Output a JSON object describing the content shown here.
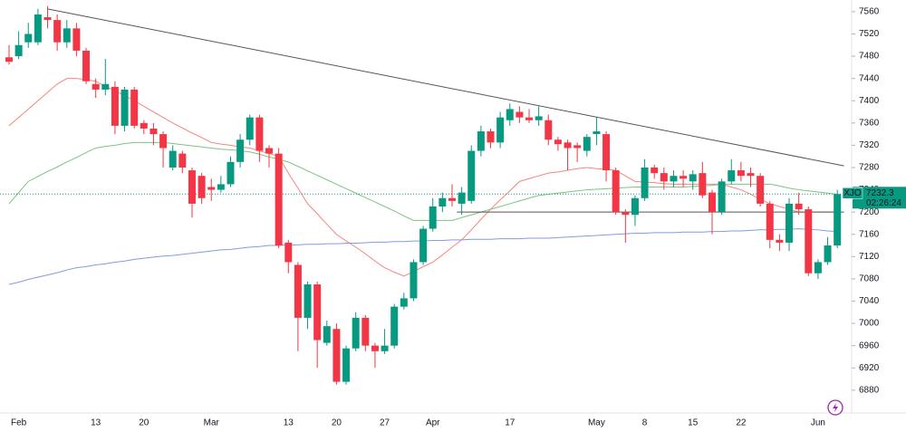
{
  "chart_data": {
    "type": "candlestick",
    "symbol": "XJO",
    "last_price": 7232.3,
    "countdown": "02:26:24",
    "categories": [
      null,
      "Feb",
      null,
      null,
      null,
      null,
      null,
      null,
      null,
      "13",
      null,
      null,
      null,
      null,
      "20",
      null,
      null,
      null,
      null,
      null,
      null,
      "Mar",
      null,
      null,
      null,
      null,
      null,
      null,
      null,
      "13",
      null,
      null,
      null,
      null,
      "20",
      null,
      null,
      null,
      null,
      "27",
      null,
      null,
      null,
      null,
      "Apr",
      null,
      null,
      null,
      null,
      null,
      null,
      null,
      "17",
      null,
      null,
      null,
      null,
      null,
      null,
      null,
      null,
      "May",
      null,
      null,
      null,
      null,
      "8",
      null,
      null,
      null,
      null,
      "15",
      null,
      null,
      null,
      null,
      "22",
      null,
      null,
      null,
      null,
      null,
      null,
      null,
      "Jun",
      null,
      null
    ],
    "open": [
      7478,
      7480,
      7505,
      7505,
      7550,
      7545,
      7505,
      7530,
      7490,
      7430,
      7420,
      7425,
      7355,
      7420,
      7360,
      7350,
      7340,
      7280,
      7305,
      7275,
      7265,
      7245,
      7240,
      7250,
      7290,
      7330,
      7370,
      7315,
      7305,
      7145,
      7105,
      7010,
      7070,
      6965,
      6990,
      6895,
      6955,
      7010,
      6960,
      6950,
      6960,
      7030,
      7045,
      7110,
      7170,
      7210,
      7225,
      7215,
      7220,
      7310,
      7345,
      7325,
      7365,
      7380,
      7370,
      7365,
      7365,
      7330,
      7325,
      7320,
      7310,
      7340,
      7340,
      7275,
      7200,
      7195,
      7225,
      7280,
      7270,
      7255,
      7265,
      7255,
      7270,
      7235,
      7200,
      7255,
      7275,
      7270,
      7265,
      7215,
      7150,
      7145,
      7215,
      7205,
      7090,
      7110,
      7140
    ],
    "high": [
      7500,
      7525,
      7540,
      7565,
      7570,
      7555,
      7545,
      7540,
      7495,
      7440,
      7475,
      7435,
      7425,
      7425,
      7365,
      7360,
      7345,
      7320,
      7310,
      7280,
      7270,
      7260,
      7265,
      7300,
      7340,
      7375,
      7375,
      7320,
      7315,
      7150,
      7110,
      7075,
      7075,
      7005,
      7000,
      6960,
      7020,
      7015,
      6965,
      6990,
      7035,
      7055,
      7115,
      7175,
      7225,
      7235,
      7250,
      7245,
      7320,
      7355,
      7350,
      7380,
      7395,
      7390,
      7385,
      7390,
      7375,
      7335,
      7330,
      7325,
      7340,
      7370,
      7345,
      7280,
      7205,
      7230,
      7295,
      7285,
      7280,
      7275,
      7275,
      7275,
      7290,
      7240,
      7260,
      7295,
      7290,
      7280,
      7270,
      7220,
      7160,
      7225,
      7235,
      7210,
      7115,
      7155,
      7240
    ],
    "low": [
      7465,
      7475,
      7495,
      7500,
      7530,
      7490,
      7495,
      7480,
      7430,
      7405,
      7410,
      7340,
      7345,
      7350,
      7340,
      7320,
      7280,
      7275,
      7270,
      7190,
      7215,
      7220,
      7235,
      7245,
      7280,
      7320,
      7290,
      7280,
      7135,
      7090,
      6950,
      6990,
      6920,
      6960,
      6890,
      6890,
      6950,
      6950,
      6920,
      6945,
      6955,
      7025,
      7040,
      7105,
      7165,
      7200,
      7210,
      7195,
      7215,
      7300,
      7315,
      7315,
      7355,
      7360,
      7360,
      7355,
      7320,
      7310,
      7275,
      7290,
      7300,
      7320,
      7255,
      7195,
      7145,
      7175,
      7220,
      7260,
      7240,
      7245,
      7245,
      7240,
      7225,
      7160,
      7195,
      7250,
      7255,
      7245,
      7210,
      7135,
      7130,
      7130,
      7195,
      7085,
      7080,
      7105,
      7135
    ],
    "close": [
      7470,
      7500,
      7520,
      7555,
      7545,
      7505,
      7530,
      7490,
      7435,
      7420,
      7430,
      7355,
      7420,
      7355,
      7350,
      7340,
      7315,
      7310,
      7280,
      7215,
      7225,
      7240,
      7250,
      7290,
      7330,
      7370,
      7310,
      7305,
      7140,
      7110,
      7010,
      7070,
      6970,
      6995,
      6895,
      6955,
      7010,
      6960,
      6950,
      6960,
      7030,
      7045,
      7110,
      7170,
      7210,
      7225,
      7220,
      7235,
      7310,
      7345,
      7325,
      7370,
      7385,
      7370,
      7365,
      7372,
      7330,
      7322,
      7315,
      7315,
      7335,
      7345,
      7275,
      7200,
      7195,
      7225,
      7280,
      7270,
      7255,
      7265,
      7260,
      7268,
      7230,
      7200,
      7255,
      7275,
      7265,
      7265,
      7215,
      7150,
      7145,
      7215,
      7205,
      7090,
      7110,
      7140,
      7232.3
    ],
    "up_color": "#089981",
    "down_color": "#f23645",
    "moving_averages": [
      {
        "color": "#f5857d",
        "values": [
          7355,
          7370,
          7385,
          7400,
          7415,
          7430,
          7440,
          7440,
          7438,
          7435,
          7426,
          7418,
          7409,
          7400,
          7390,
          7380,
          7370,
          7360,
          7351,
          7342,
          7334,
          7325,
          7322,
          7320,
          7317,
          7315,
          7310,
          7305,
          7300,
          7270,
          7243,
          7215,
          7197,
          7178,
          7160,
          7148,
          7137,
          7125,
          7112,
          7100,
          7092,
          7085,
          7093,
          7102,
          7110,
          7123,
          7137,
          7150,
          7168,
          7187,
          7205,
          7222,
          7238,
          7255,
          7260,
          7265,
          7270,
          7272,
          7275,
          7278,
          7280,
          7278,
          7277,
          7275,
          7265,
          7255,
          7254,
          7253,
          7251,
          7250,
          7250,
          7250,
          7250,
          7250,
          7250,
          7245,
          7240,
          7232,
          7223,
          7215,
          7210,
          7205,
          7200,
          7200,
          7200,
          7200,
          7200
        ]
      },
      {
        "color": "#7cc47f",
        "values": [
          7215,
          7235,
          7255,
          7264,
          7273,
          7281,
          7290,
          7298,
          7307,
          7315,
          7318,
          7320,
          7323,
          7325,
          7325,
          7325,
          7325,
          7323,
          7321,
          7319,
          7317,
          7315,
          7313,
          7312,
          7310,
          7308,
          7304,
          7299,
          7295,
          7290,
          7282,
          7274,
          7266,
          7258,
          7250,
          7242,
          7234,
          7226,
          7218,
          7210,
          7202,
          7193,
          7185,
          7185,
          7185,
          7185,
          7185,
          7190,
          7195,
          7200,
          7205,
          7210,
          7215,
          7220,
          7225,
          7230,
          7232,
          7234,
          7236,
          7238,
          7240,
          7241,
          7242,
          7243,
          7244,
          7245,
          7245,
          7245,
          7245,
          7245,
          7245,
          7246,
          7247,
          7248,
          7250,
          7250,
          7250,
          7250,
          7250,
          7250,
          7247,
          7243,
          7240,
          7238,
          7236,
          7234,
          7232
        ]
      },
      {
        "color": "#7f9de3",
        "values": [
          7070,
          7074,
          7079,
          7083,
          7087,
          7091,
          7096,
          7100,
          7102,
          7105,
          7107,
          7110,
          7112,
          7115,
          7117,
          7119,
          7121,
          7122,
          7124,
          7126,
          7128,
          7130,
          7132,
          7133,
          7135,
          7137,
          7138,
          7140,
          7140,
          7141,
          7141,
          7142,
          7142,
          7143,
          7143,
          7144,
          7144,
          7145,
          7146,
          7146,
          7147,
          7147,
          7148,
          7148,
          7149,
          7149,
          7150,
          7150,
          7151,
          7151,
          7151,
          7152,
          7152,
          7152,
          7153,
          7153,
          7153,
          7154,
          7155,
          7156,
          7157,
          7158,
          7159,
          7160,
          7161,
          7162,
          7162,
          7163,
          7163,
          7163,
          7164,
          7164,
          7164,
          7165,
          7165,
          7166,
          7166,
          7167,
          7168,
          7168,
          7169,
          7169,
          7170,
          7169,
          7168,
          7166,
          7165
        ]
      }
    ],
    "trendlines": [
      {
        "color": "#555555",
        "from": [
          4,
          7565
        ],
        "to": [
          86.7,
          7283
        ]
      },
      {
        "color": "#555555",
        "from": [
          46.5,
          7200
        ],
        "to": [
          86.7,
          7200
        ]
      }
    ],
    "ylim": [
      6839,
      7581
    ],
    "yticks": [
      6880,
      6920,
      6960,
      7000,
      7040,
      7080,
      7120,
      7160,
      7200,
      7240,
      7280,
      7320,
      7360,
      7400,
      7440,
      7480,
      7520,
      7560
    ]
  }
}
